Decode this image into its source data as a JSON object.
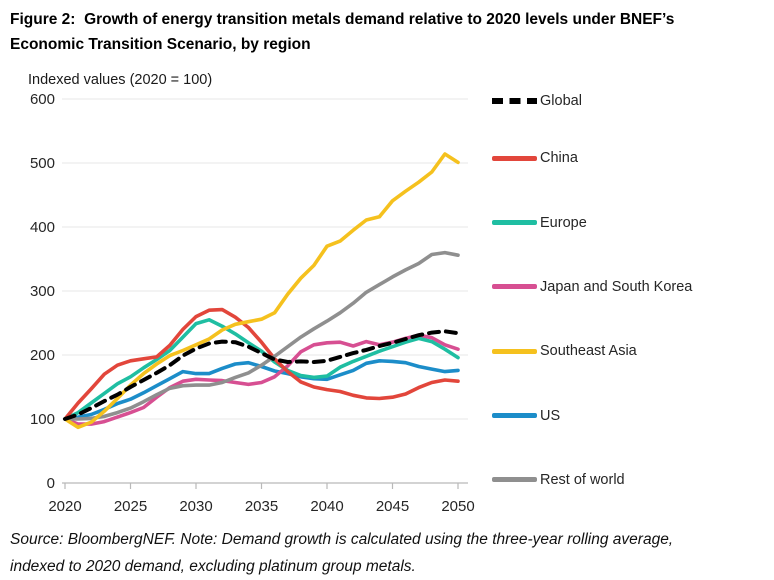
{
  "figure": {
    "title_lines": [
      "Figure 2:  Growth of energy transition metals demand relative to 2020 levels under BNEF’s",
      "Economic Transition Scenario, by region"
    ],
    "axis_units_label": "Indexed values (2020 = 100)",
    "source_lines": [
      "Source: BloombergNEF. Note: Demand growth is calculated using the three-year rolling average,",
      "indexed to 2020 demand, excluding platinum group metals."
    ]
  },
  "chart_data": {
    "type": "line",
    "title": "Growth of energy transition metals demand relative to 2020 levels under BNEF's Economic Transition Scenario, by region",
    "ylabel": "Indexed values (2020 = 100)",
    "xlabel": "",
    "xlim": [
      2020,
      2050
    ],
    "ylim": [
      0,
      600
    ],
    "xticks": [
      2020,
      2025,
      2030,
      2035,
      2040,
      2045,
      2050
    ],
    "yticks": [
      0,
      100,
      200,
      300,
      400,
      500,
      600
    ],
    "grid": "horizontal",
    "legend_position": "right",
    "x": [
      2020,
      2021,
      2022,
      2023,
      2024,
      2025,
      2026,
      2027,
      2028,
      2029,
      2030,
      2031,
      2032,
      2033,
      2034,
      2035,
      2036,
      2037,
      2038,
      2039,
      2040,
      2041,
      2042,
      2043,
      2044,
      2045,
      2046,
      2047,
      2048,
      2049,
      2050
    ],
    "series": [
      {
        "name": "Global",
        "color": "#000000",
        "dash": true,
        "values": [
          100,
          107,
          117,
          128,
          138,
          150,
          161,
          172,
          184,
          199,
          210,
          218,
          221,
          220,
          213,
          203,
          193,
          189,
          190,
          189,
          191,
          197,
          203,
          208,
          214,
          219,
          225,
          231,
          235,
          237,
          234
        ]
      },
      {
        "name": "China",
        "color": "#e2463b",
        "dash": false,
        "values": [
          100,
          125,
          147,
          170,
          184,
          191,
          194,
          197,
          215,
          240,
          260,
          270,
          271,
          259,
          243,
          220,
          194,
          174,
          158,
          150,
          146,
          143,
          137,
          133,
          132,
          134,
          139,
          149,
          157,
          161,
          159
        ]
      },
      {
        "name": "Europe",
        "color": "#1fbea2",
        "dash": false,
        "values": [
          100,
          110,
          125,
          140,
          155,
          166,
          180,
          193,
          207,
          228,
          249,
          255,
          245,
          233,
          219,
          206,
          189,
          176,
          168,
          165,
          167,
          181,
          190,
          198,
          206,
          213,
          220,
          226,
          221,
          209,
          196
        ]
      },
      {
        "name": "Japan and South Korea",
        "color": "#d74f92",
        "dash": false,
        "values": [
          100,
          92,
          92,
          96,
          103,
          110,
          118,
          134,
          149,
          159,
          162,
          161,
          160,
          157,
          154,
          157,
          166,
          183,
          205,
          216,
          219,
          220,
          214,
          221,
          216,
          220,
          226,
          231,
          227,
          216,
          209
        ]
      },
      {
        "name": "Southeast Asia",
        "color": "#f5c11e",
        "dash": false,
        "values": [
          100,
          87,
          95,
          112,
          132,
          153,
          171,
          186,
          199,
          207,
          216,
          225,
          239,
          248,
          252,
          256,
          266,
          295,
          320,
          340,
          370,
          378,
          395,
          411,
          416,
          441,
          456,
          470,
          486,
          514,
          501
        ]
      },
      {
        "name": "US",
        "color": "#1c8dc9",
        "dash": false,
        "values": [
          100,
          103,
          107,
          115,
          124,
          131,
          141,
          152,
          163,
          174,
          171,
          171,
          179,
          186,
          188,
          182,
          175,
          171,
          166,
          163,
          162,
          169,
          176,
          187,
          191,
          190,
          188,
          182,
          178,
          174,
          176
        ]
      },
      {
        "name": "Rest of world",
        "color": "#8f8f8f",
        "dash": false,
        "values": [
          100,
          100,
          101,
          104,
          110,
          117,
          127,
          138,
          148,
          152,
          153,
          153,
          157,
          165,
          172,
          184,
          198,
          213,
          228,
          241,
          253,
          266,
          281,
          298,
          310,
          322,
          333,
          343,
          357,
          360,
          356
        ]
      }
    ]
  }
}
